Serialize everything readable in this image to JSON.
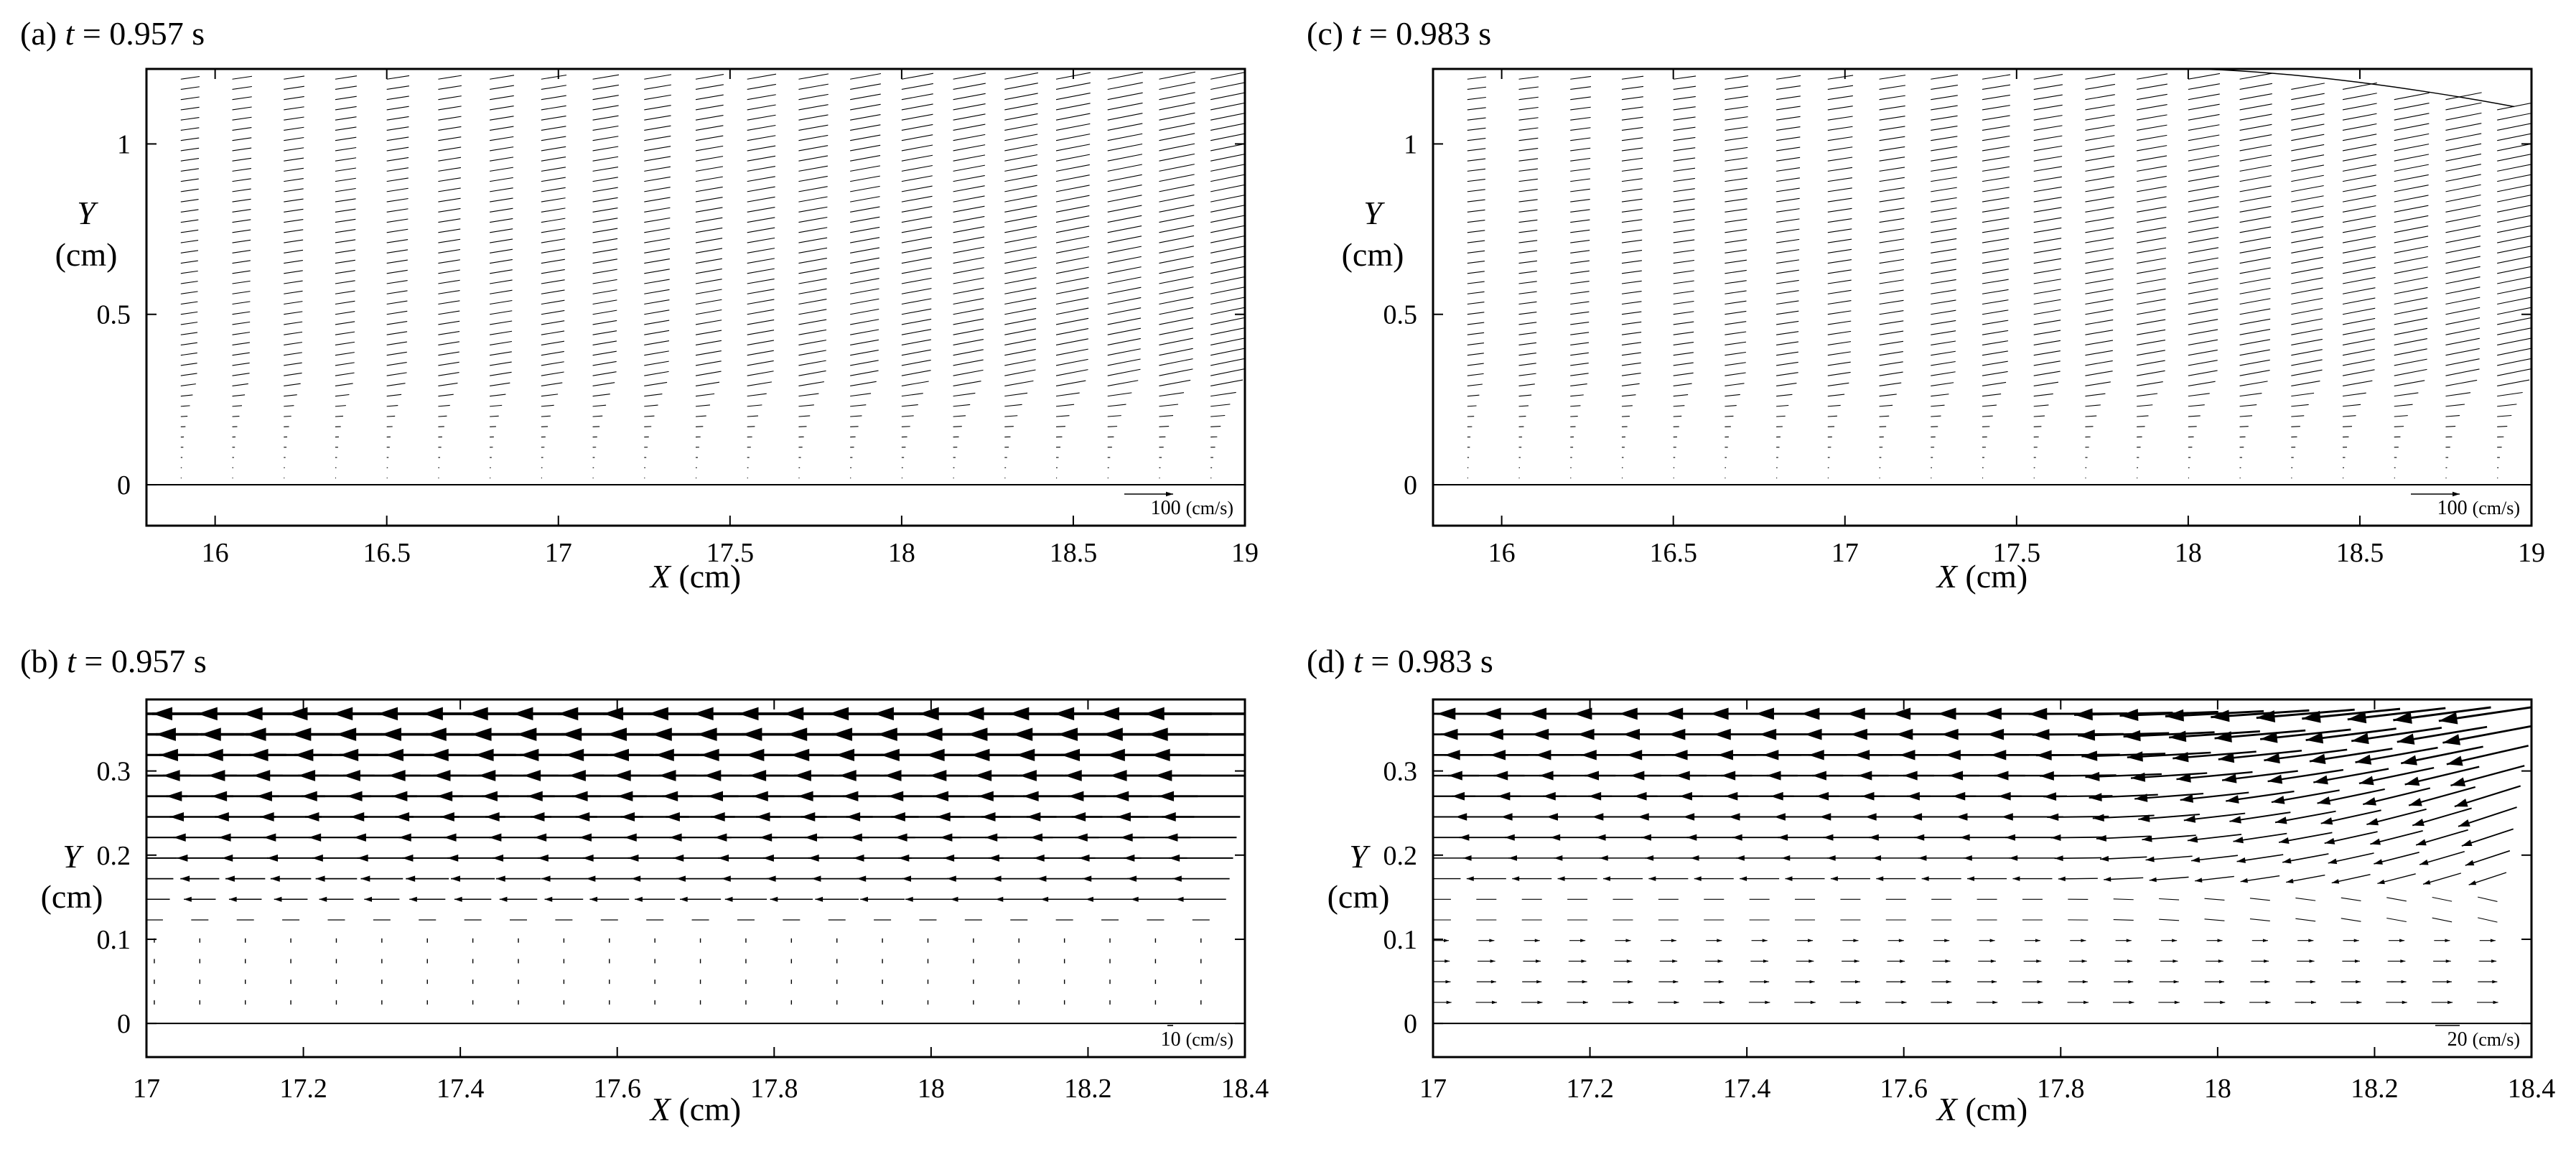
{
  "figure": {
    "panels": [
      {
        "id": "a",
        "letter": "(a) ",
        "t_symbol": "t",
        "t_rest": " = 0.957 s"
      },
      {
        "id": "b",
        "letter": "(b) ",
        "t_symbol": "t",
        "t_rest": " = 0.957 s"
      },
      {
        "id": "c",
        "letter": "(c) ",
        "t_symbol": "t",
        "t_rest": " = 0.983 s"
      },
      {
        "id": "d",
        "letter": "(d) ",
        "t_symbol": "t",
        "t_rest": " = 0.983 s"
      }
    ]
  },
  "chart_data": [
    {
      "id": "a",
      "type": "vector-field",
      "title": "(a) t = 0.957 s",
      "xlabel": "X (cm)",
      "ylabel": "Y (cm)",
      "xlim": [
        15.8,
        19
      ],
      "ylim": [
        -0.12,
        1.22
      ],
      "xticks": [
        16,
        16.5,
        17,
        17.5,
        18,
        18.5,
        19
      ],
      "xtick_labels": [
        "16",
        "16.5",
        "17",
        "17.5",
        "18",
        "18.5",
        "19"
      ],
      "yticks": [
        0,
        0.5,
        1
      ],
      "ytick_labels": [
        "0",
        "0.5",
        "1"
      ],
      "reference_vector": {
        "value": 100,
        "label": "100",
        "unit": "(cm/s)"
      },
      "flow_direction": "negative-x",
      "surface": "flat",
      "columns_x": [
        15.9,
        16.05,
        16.2,
        16.35,
        16.5,
        16.65,
        16.8,
        16.95,
        17.1,
        17.25,
        17.4,
        17.55,
        17.7,
        17.85,
        18.0,
        18.15,
        18.3,
        18.45,
        18.6,
        18.75,
        18.9
      ]
    },
    {
      "id": "b",
      "type": "vector-field",
      "title": "(b) t = 0.957 s",
      "xlabel": "X (cm)",
      "ylabel": "Y (cm)",
      "xlim": [
        17,
        18.4
      ],
      "ylim": [
        -0.04,
        0.385
      ],
      "xticks": [
        17,
        17.2,
        17.4,
        17.6,
        17.8,
        18,
        18.2,
        18.4
      ],
      "xtick_labels": [
        "17",
        "17.2",
        "17.4",
        "17.6",
        "17.8",
        "18",
        "18.2",
        "18.4"
      ],
      "yticks": [
        0,
        0.1,
        0.2,
        0.3
      ],
      "ytick_labels": [
        "0",
        "0.1",
        "0.2",
        "0.3"
      ],
      "reference_vector": {
        "value": 10,
        "label": "10",
        "unit": "(cm/s)"
      },
      "flow_direction": "negative-x"
    },
    {
      "id": "c",
      "type": "vector-field",
      "title": "(c) t = 0.983 s",
      "xlabel": "X (cm)",
      "ylabel": "Y (cm)",
      "xlim": [
        15.8,
        19
      ],
      "ylim": [
        -0.12,
        1.22
      ],
      "xticks": [
        16,
        16.5,
        17,
        17.5,
        18,
        18.5,
        19
      ],
      "xtick_labels": [
        "16",
        "16.5",
        "17",
        "17.5",
        "18",
        "18.5",
        "19"
      ],
      "yticks": [
        0,
        0.5,
        1
      ],
      "ytick_labels": [
        "0",
        "0.5",
        "1"
      ],
      "reference_vector": {
        "value": 100,
        "label": "100",
        "unit": "(cm/s)"
      },
      "flow_direction": "negative-x",
      "surface": "dipping-at-right",
      "columns_x": [
        15.9,
        16.05,
        16.2,
        16.35,
        16.5,
        16.65,
        16.8,
        16.95,
        17.1,
        17.25,
        17.4,
        17.55,
        17.7,
        17.85,
        18.0,
        18.15,
        18.3,
        18.45,
        18.6,
        18.75,
        18.9
      ]
    },
    {
      "id": "d",
      "type": "vector-field",
      "title": "(d) t = 0.983 s",
      "xlabel": "X (cm)",
      "ylabel": "Y (cm)",
      "xlim": [
        17,
        18.4
      ],
      "ylim": [
        -0.04,
        0.385
      ],
      "xticks": [
        17,
        17.2,
        17.4,
        17.6,
        17.8,
        18,
        18.2,
        18.4
      ],
      "xtick_labels": [
        "17",
        "17.2",
        "17.4",
        "17.6",
        "17.8",
        "18",
        "18.2",
        "18.4"
      ],
      "yticks": [
        0,
        0.1,
        0.2,
        0.3
      ],
      "ytick_labels": [
        "0",
        "0.1",
        "0.2",
        "0.3"
      ],
      "reference_vector": {
        "value": 20,
        "label": "20",
        "unit": "(cm/s)"
      },
      "flow_direction": "negative-x-top-reversed-near-bed"
    }
  ]
}
